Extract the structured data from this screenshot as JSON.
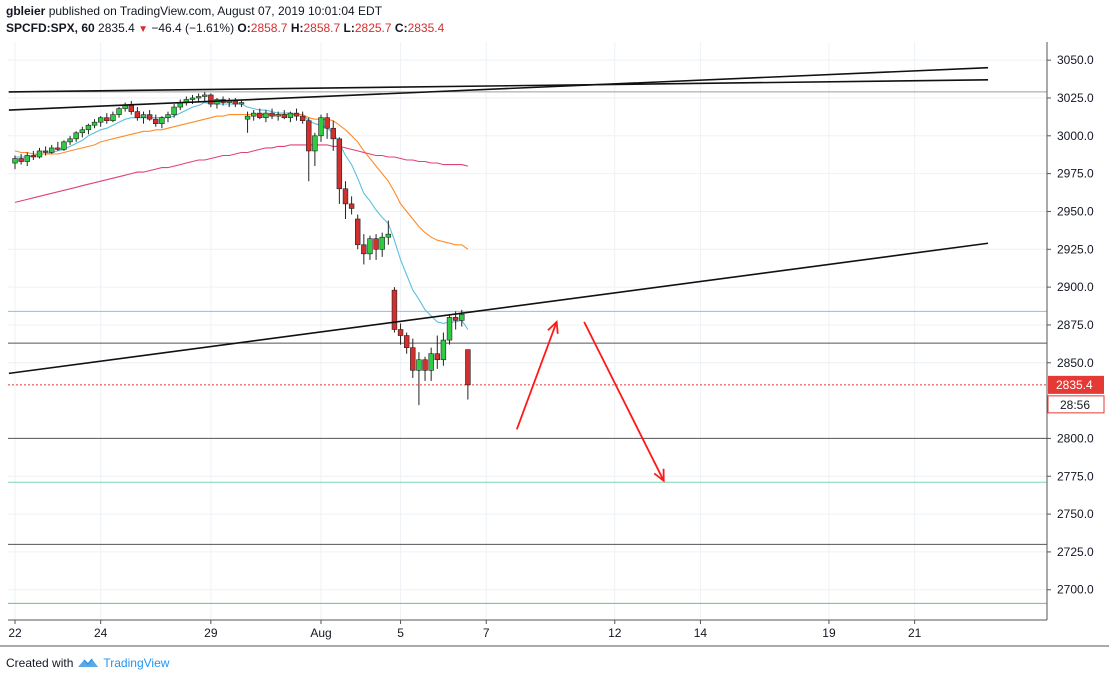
{
  "header": {
    "author": "gbleier",
    "published_text": "published on TradingView.com, August 07, 2019 10:01:04 EDT",
    "symbol": "SPCFD:SPX, 60",
    "last": "2835.4",
    "change": "−46.4 (−1.61%)",
    "open_label": "O:",
    "open": "2858.7",
    "high_label": "H:",
    "high": "2858.7",
    "low_label": "L:",
    "low": "2825.7",
    "close_label": "C:",
    "close": "2835.4"
  },
  "price_badge": "2835.4",
  "time_badge": "28:56",
  "footer": {
    "created_with": "Created with",
    "brand": "TradingView"
  },
  "colors": {
    "up": "#2ecc40",
    "down": "#d32f2f",
    "ema_fast": "#5bc0de",
    "ema_mid": "#ff8c2b",
    "ema_slow": "#e0407b",
    "annotation": "#ff1a1a",
    "badge": "#e53935"
  },
  "chart_data": {
    "type": "candlestick",
    "ylim": [
      2680,
      3062
    ],
    "y_ticks": [
      3050,
      3025,
      3000,
      2975,
      2950,
      2925,
      2900,
      2875,
      2850,
      2800,
      2775,
      2750,
      2725,
      2700
    ],
    "x_ticks": [
      {
        "label": "22",
        "i": 0
      },
      {
        "label": "24",
        "i": 14
      },
      {
        "label": "29",
        "i": 32
      },
      {
        "label": "Aug",
        "i": 50
      },
      {
        "label": "5",
        "i": 63
      },
      {
        "label": "7",
        "i": 77
      },
      {
        "label": "12",
        "i": 98
      },
      {
        "label": "14",
        "i": 112
      },
      {
        "label": "19",
        "i": 133
      },
      {
        "label": "21",
        "i": 147
      }
    ],
    "candles": [
      [
        2982,
        2987,
        2978,
        2985
      ],
      [
        2985,
        2988,
        2981,
        2983
      ],
      [
        2983,
        2989,
        2980,
        2987
      ],
      [
        2987,
        2990,
        2984,
        2986
      ],
      [
        2986,
        2992,
        2985,
        2990
      ],
      [
        2990,
        2993,
        2987,
        2989
      ],
      [
        2989,
        2994,
        2988,
        2992
      ],
      [
        2992,
        2996,
        2990,
        2991
      ],
      [
        2991,
        2997,
        2990,
        2996
      ],
      [
        2996,
        3000,
        2994,
        2998
      ],
      [
        2998,
        3003,
        2996,
        3002
      ],
      [
        3002,
        3006,
        2999,
        3004
      ],
      [
        3004,
        3008,
        3001,
        3007
      ],
      [
        3007,
        3011,
        3005,
        3009
      ],
      [
        3009,
        3013,
        3006,
        3012
      ],
      [
        3012,
        3015,
        3008,
        3010
      ],
      [
        3010,
        3016,
        3009,
        3014
      ],
      [
        3014,
        3019,
        3012,
        3018
      ],
      [
        3018,
        3022,
        3016,
        3020
      ],
      [
        3020,
        3023,
        3014,
        3016
      ],
      [
        3016,
        3019,
        3010,
        3012
      ],
      [
        3012,
        3016,
        3008,
        3014
      ],
      [
        3014,
        3017,
        3010,
        3011
      ],
      [
        3011,
        3014,
        3006,
        3008
      ],
      [
        3008,
        3013,
        3005,
        3012
      ],
      [
        3012,
        3016,
        3009,
        3014
      ],
      [
        3014,
        3021,
        3012,
        3019
      ],
      [
        3019,
        3024,
        3017,
        3022
      ],
      [
        3022,
        3026,
        3020,
        3024
      ],
      [
        3024,
        3027,
        3021,
        3025
      ],
      [
        3025,
        3028,
        3022,
        3026
      ],
      [
        3026,
        3029,
        3023,
        3027
      ],
      [
        3027,
        3028,
        3019,
        3021
      ],
      [
        3021,
        3025,
        3018,
        3024
      ],
      [
        3024,
        3026,
        3020,
        3022
      ],
      [
        3022,
        3025,
        3019,
        3023
      ],
      [
        3023,
        3025,
        3019,
        3021
      ],
      [
        3021,
        3024,
        3019,
        3022
      ],
      [
        3011,
        3016,
        3002,
        3013
      ],
      [
        3013,
        3017,
        3010,
        3015
      ],
      [
        3015,
        3018,
        3011,
        3012
      ],
      [
        3012,
        3017,
        3009,
        3015
      ],
      [
        3015,
        3018,
        3011,
        3013
      ],
      [
        3013,
        3016,
        3010,
        3014
      ],
      [
        3014,
        3017,
        3011,
        3012
      ],
      [
        3012,
        3016,
        3009,
        3015
      ],
      [
        3015,
        3018,
        3010,
        3013
      ],
      [
        3013,
        3016,
        3008,
        3010
      ],
      [
        3010,
        3012,
        2970,
        2990
      ],
      [
        2990,
        3002,
        2980,
        3000
      ],
      [
        3000,
        3014,
        2996,
        3012
      ],
      [
        3012,
        3015,
        2998,
        3005
      ],
      [
        3005,
        3010,
        2990,
        2998
      ],
      [
        2998,
        2999,
        2955,
        2965
      ],
      [
        2965,
        2970,
        2945,
        2955
      ],
      [
        2955,
        2960,
        2948,
        2952
      ],
      [
        2945,
        2948,
        2925,
        2928
      ],
      [
        2928,
        2935,
        2915,
        2922
      ],
      [
        2922,
        2934,
        2918,
        2932
      ],
      [
        2932,
        2935,
        2918,
        2925
      ],
      [
        2925,
        2936,
        2920,
        2933
      ],
      [
        2933,
        2944,
        2928,
        2935
      ],
      [
        2898,
        2900,
        2870,
        2872
      ],
      [
        2872,
        2876,
        2862,
        2868
      ],
      [
        2868,
        2870,
        2856,
        2860
      ],
      [
        2860,
        2866,
        2840,
        2845
      ],
      [
        2845,
        2857,
        2822,
        2852
      ],
      [
        2852,
        2854,
        2838,
        2845
      ],
      [
        2845,
        2860,
        2838,
        2856
      ],
      [
        2856,
        2868,
        2846,
        2852
      ],
      [
        2852,
        2870,
        2848,
        2865
      ],
      [
        2865,
        2882,
        2862,
        2880
      ],
      [
        2880,
        2884,
        2872,
        2878
      ],
      [
        2878,
        2885,
        2874,
        2882
      ],
      [
        2858.7,
        2858.7,
        2825.7,
        2835.4
      ]
    ],
    "ema_fast": [
      2986,
      2986,
      2986,
      2987,
      2988,
      2988,
      2989,
      2990,
      2991,
      2993,
      2995,
      2997,
      3000,
      3002,
      3004,
      3005,
      3007,
      3009,
      3011,
      3012,
      3012,
      3012,
      3012,
      3012,
      3012,
      3012,
      3013,
      3015,
      3017,
      3019,
      3020,
      3022,
      3021,
      3021,
      3021,
      3021,
      3021,
      3021,
      3019,
      3018,
      3017,
      3017,
      3016,
      3015,
      3015,
      3015,
      3014,
      3014,
      3010,
      3008,
      3007,
      3005,
      3002,
      2995,
      2987,
      2981,
      2972,
      2962,
      2957,
      2951,
      2946,
      2942,
      2931,
      2918,
      2908,
      2898,
      2892,
      2885,
      2881,
      2877,
      2876,
      2877,
      2877,
      2878,
      2872
    ],
    "ema_mid": [
      2990,
      2989,
      2989,
      2988,
      2988,
      2988,
      2988,
      2988,
      2989,
      2990,
      2991,
      2992,
      2993,
      2994,
      2996,
      2997,
      2998,
      2999,
      3000,
      3001,
      3002,
      3003,
      3003,
      3004,
      3004,
      3005,
      3006,
      3007,
      3008,
      3009,
      3010,
      3011,
      3012,
      3013,
      3013,
      3014,
      3014,
      3014,
      3014,
      3014,
      3014,
      3014,
      3014,
      3014,
      3014,
      3014,
      3014,
      3014,
      3012,
      3011,
      3011,
      3011,
      3010,
      3007,
      3004,
      3000,
      2996,
      2990,
      2985,
      2980,
      2975,
      2970,
      2963,
      2955,
      2950,
      2945,
      2940,
      2936,
      2933,
      2931,
      2930,
      2929,
      2928,
      2928,
      2925
    ],
    "ema_slow": [
      2956,
      2957,
      2958,
      2959,
      2960,
      2961,
      2962,
      2963,
      2964,
      2965,
      2966,
      2967,
      2968,
      2969,
      2970,
      2971,
      2972,
      2973,
      2974,
      2975,
      2976,
      2976,
      2977,
      2978,
      2979,
      2979,
      2980,
      2981,
      2982,
      2983,
      2984,
      2984,
      2985,
      2986,
      2987,
      2987,
      2988,
      2989,
      2989,
      2990,
      2991,
      2992,
      2992,
      2993,
      2993,
      2994,
      2994,
      2994,
      2994,
      2994,
      2994,
      2994,
      2993,
      2993,
      2992,
      2991,
      2990,
      2989,
      2988,
      2987,
      2987,
      2986,
      2986,
      2985,
      2984,
      2984,
      2983,
      2983,
      2982,
      2982,
      2981,
      2981,
      2981,
      2981,
      2980
    ],
    "horizontal_levels": [
      {
        "price": 3029,
        "color": "#9e9e9e"
      },
      {
        "price": 2884,
        "color": "#7ec8e3"
      },
      {
        "price": 2863,
        "color": "#555555"
      },
      {
        "price": 2835.4,
        "color": "#e53935",
        "style": "dotted"
      },
      {
        "price": 2800,
        "color": "#555555"
      },
      {
        "price": 2771,
        "color": "#7fd6b3"
      },
      {
        "price": 2730,
        "color": "#555555"
      },
      {
        "price": 2691,
        "color": "#5ccb6b"
      }
    ],
    "trendlines": [
      {
        "x0": -1,
        "p0": 3017,
        "x1": 159,
        "p1": 3045
      },
      {
        "x0": -1,
        "p0": 3029,
        "x1": 159,
        "p1": 3037
      },
      {
        "x0": -1,
        "p0": 2843,
        "x1": 159,
        "p1": 2929
      }
    ],
    "arrows": [
      {
        "x0": 82,
        "p0": 2806,
        "x1": 88.5,
        "p1": 2877
      },
      {
        "x0": 93,
        "p0": 2877,
        "x1": 106,
        "p1": 2772
      }
    ]
  }
}
